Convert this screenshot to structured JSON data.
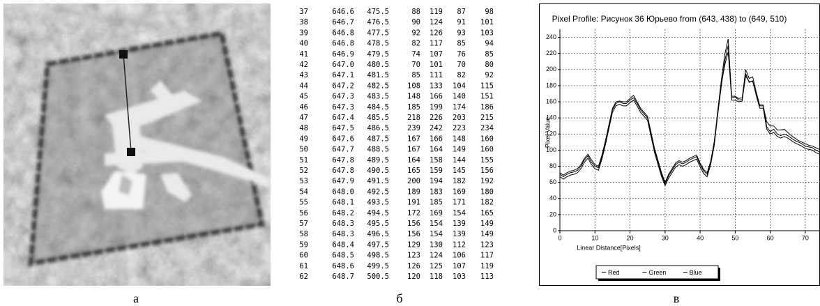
{
  "panel_labels": [
    "а",
    "б",
    "в"
  ],
  "table": {
    "rows": [
      [
        "37",
        "646.6",
        "475.5",
        "88",
        "119",
        "87",
        "98"
      ],
      [
        "38",
        "646.7",
        "476.5",
        "90",
        "124",
        "91",
        "101"
      ],
      [
        "39",
        "646.8",
        "477.5",
        "92",
        "126",
        "93",
        "103"
      ],
      [
        "40",
        "646.8",
        "478.5",
        "82",
        "117",
        "85",
        "94"
      ],
      [
        "41",
        "646.9",
        "479.5",
        "74",
        "107",
        "76",
        "85"
      ],
      [
        "42",
        "647.0",
        "480.5",
        "70",
        "101",
        "70",
        "80"
      ],
      [
        "43",
        "647.1",
        "481.5",
        "85",
        "111",
        "82",
        "92"
      ],
      [
        "44",
        "647.2",
        "482.5",
        "108",
        "133",
        "104",
        "115"
      ],
      [
        "45",
        "647.3",
        "483.5",
        "148",
        "166",
        "140",
        "151"
      ],
      [
        "46",
        "647.3",
        "484.5",
        "185",
        "199",
        "174",
        "186"
      ],
      [
        "47",
        "647.4",
        "485.5",
        "218",
        "226",
        "203",
        "215"
      ],
      [
        "48",
        "647.5",
        "486.5",
        "239",
        "242",
        "223",
        "234"
      ],
      [
        "49",
        "647.6",
        "487.5",
        "167",
        "166",
        "148",
        "160"
      ],
      [
        "50",
        "647.7",
        "488.5",
        "167",
        "164",
        "149",
        "160"
      ],
      [
        "51",
        "647.8",
        "489.5",
        "164",
        "158",
        "144",
        "155"
      ],
      [
        "52",
        "647.8",
        "490.5",
        "165",
        "159",
        "145",
        "156"
      ],
      [
        "53",
        "647.9",
        "491.5",
        "200",
        "194",
        "182",
        "192"
      ],
      [
        "54",
        "648.0",
        "492.5",
        "189",
        "183",
        "169",
        "180"
      ],
      [
        "55",
        "648.1",
        "493.5",
        "191",
        "185",
        "171",
        "182"
      ],
      [
        "56",
        "648.2",
        "494.5",
        "172",
        "169",
        "154",
        "165"
      ],
      [
        "57",
        "648.3",
        "495.5",
        "156",
        "154",
        "139",
        "149"
      ],
      [
        "58",
        "648.3",
        "496.5",
        "156",
        "154",
        "139",
        "149"
      ],
      [
        "59",
        "648.4",
        "497.5",
        "129",
        "130",
        "112",
        "123"
      ],
      [
        "60",
        "648.5",
        "498.5",
        "123",
        "124",
        "106",
        "117"
      ],
      [
        "61",
        "648.6",
        "499.5",
        "126",
        "125",
        "107",
        "119"
      ],
      [
        "62",
        "648.7",
        "500.5",
        "120",
        "118",
        "103",
        "113"
      ]
    ]
  },
  "chart_data": {
    "type": "line",
    "title": "Pixel Profile:  Рисунок 36 Юрьево  from (643, 438) to (649, 510)",
    "x_label": "Linear Distance[Pixels]",
    "y_label": "Pixel Value",
    "x": [
      0,
      1,
      2,
      3,
      4,
      5,
      6,
      7,
      8,
      9,
      10,
      11,
      12,
      13,
      14,
      15,
      16,
      17,
      18,
      19,
      20,
      21,
      22,
      23,
      24,
      25,
      26,
      27,
      28,
      29,
      30,
      31,
      32,
      33,
      34,
      35,
      36,
      37,
      38,
      39,
      40,
      41,
      42,
      43,
      44,
      45,
      46,
      47,
      48,
      49,
      50,
      51,
      52,
      53,
      54,
      55,
      56,
      57,
      58,
      59,
      60,
      61,
      62,
      63,
      64,
      65,
      66,
      67,
      68,
      69,
      70,
      71,
      72,
      73,
      74
    ],
    "series": [
      {
        "name": "Red",
        "color": "#000000",
        "values": [
          70,
          67,
          70,
          72,
          73,
          75,
          80,
          88,
          93,
          85,
          80,
          78,
          92,
          110,
          130,
          150,
          158,
          160,
          158,
          158,
          162,
          165,
          158,
          150,
          145,
          140,
          120,
          100,
          85,
          70,
          58,
          68,
          75,
          82,
          85,
          83,
          85,
          88,
          90,
          92,
          82,
          74,
          70,
          85,
          108,
          148,
          185,
          218,
          238,
          167,
          167,
          164,
          165,
          200,
          189,
          191,
          172,
          156,
          156,
          129,
          123,
          126,
          120,
          118,
          120,
          118,
          115,
          112,
          110,
          108,
          105,
          104,
          103,
          100,
          98
        ]
      },
      {
        "name": "Green",
        "color": "#000000",
        "values": [
          72,
          69,
          72,
          74,
          75,
          77,
          82,
          90,
          95,
          88,
          82,
          80,
          94,
          112,
          132,
          152,
          160,
          161,
          160,
          160,
          164,
          168,
          160,
          152,
          147,
          142,
          122,
          102,
          87,
          72,
          60,
          70,
          77,
          84,
          87,
          85,
          87,
          90,
          92,
          94,
          84,
          76,
          72,
          86,
          110,
          145,
          180,
          205,
          222,
          165,
          166,
          162,
          163,
          192,
          185,
          185,
          170,
          155,
          155,
          135,
          130,
          130,
          125,
          125,
          126,
          122,
          118,
          115,
          112,
          110,
          108,
          106,
          105,
          103,
          101
        ]
      },
      {
        "name": "Blue",
        "color": "#000000",
        "values": [
          67,
          64,
          67,
          69,
          70,
          72,
          77,
          85,
          90,
          82,
          77,
          75,
          89,
          107,
          127,
          147,
          155,
          157,
          155,
          155,
          159,
          162,
          155,
          147,
          142,
          137,
          117,
          97,
          82,
          67,
          56,
          65,
          72,
          79,
          82,
          80,
          82,
          85,
          87,
          89,
          79,
          71,
          67,
          82,
          105,
          143,
          178,
          210,
          230,
          162,
          162,
          160,
          161,
          195,
          184,
          186,
          168,
          152,
          152,
          126,
          120,
          122,
          117,
          115,
          117,
          115,
          112,
          109,
          107,
          105,
          102,
          101,
          100,
          97,
          95
        ]
      }
    ],
    "xlim": [
      0,
      74
    ],
    "xticks": [
      0,
      10,
      20,
      30,
      40,
      50,
      60,
      70
    ],
    "ylim": [
      0,
      250
    ],
    "yticks": [
      0,
      20,
      40,
      60,
      80,
      100,
      120,
      140,
      160,
      180,
      200,
      220,
      240
    ],
    "grid": true,
    "legend": "bottom"
  }
}
